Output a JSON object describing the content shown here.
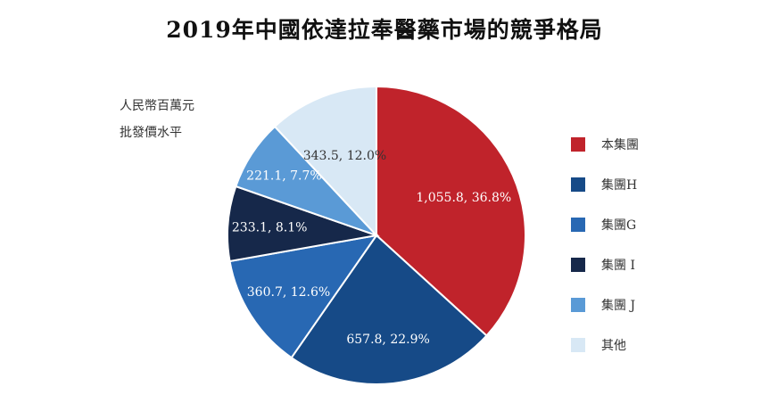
{
  "chart_data": {
    "type": "pie",
    "title": "2019年中國依達拉奉醫藥市場的競爭格局",
    "unit_label": [
      "人民幣百萬元",
      "批發價水平"
    ],
    "legend_position": "right",
    "slices": [
      {
        "name": "本集團",
        "value": 1055.8,
        "percent": 36.8,
        "label": "1,055.8, 36.8%",
        "color": "#c0232b",
        "label_color": "#ffffff"
      },
      {
        "name": "集團H",
        "value": 657.8,
        "percent": 22.9,
        "label": "657.8, 22.9%",
        "color": "#164a87",
        "label_color": "#ffffff"
      },
      {
        "name": "集團G",
        "value": 360.7,
        "percent": 12.6,
        "label": "360.7, 12.6%",
        "color": "#2868b3",
        "label_color": "#ffffff"
      },
      {
        "name": "集團 I",
        "value": 233.1,
        "percent": 8.1,
        "label": "233.1, 8.1%",
        "color": "#16284a",
        "label_color": "#ffffff"
      },
      {
        "name": "集團 J",
        "value": 221.1,
        "percent": 7.7,
        "label": "221.1, 7.7%",
        "color": "#5a9ad6",
        "label_color": "#ffffff"
      },
      {
        "name": "其他",
        "value": 343.5,
        "percent": 12.0,
        "label": "343.5, 12.0%",
        "color": "#d8e8f5",
        "label_color": "#333333"
      }
    ]
  }
}
